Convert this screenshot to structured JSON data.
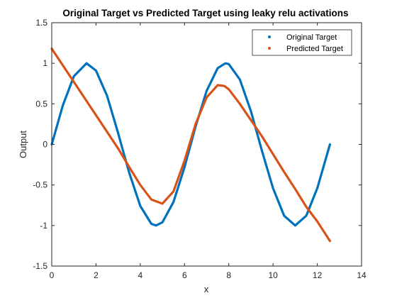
{
  "chart_data": {
    "type": "line",
    "title": "Original Target vs Predicted Target using leaky relu activations",
    "xlabel": "x",
    "ylabel": "Output",
    "xlim": [
      0,
      14
    ],
    "ylim": [
      -1.5,
      1.5
    ],
    "xticks": [
      0,
      2,
      4,
      6,
      8,
      10,
      12,
      14
    ],
    "yticks": [
      -1.5,
      -1,
      -0.5,
      0,
      0.5,
      1,
      1.5
    ],
    "xtick_labels": [
      "0",
      "2",
      "4",
      "6",
      "8",
      "10",
      "12",
      "14"
    ],
    "ytick_labels": [
      "-1.5",
      "-1",
      "-0.5",
      "0",
      "0.5",
      "1",
      "1.5"
    ],
    "grid": false,
    "legend_position": "top-right",
    "series": [
      {
        "name": "Original Target",
        "color": "#0072BD",
        "x": [
          0,
          0.5,
          1.0,
          1.57,
          2.0,
          2.5,
          3.0,
          3.14,
          3.5,
          4.0,
          4.5,
          4.71,
          5.0,
          5.5,
          6.0,
          6.28,
          6.5,
          7.0,
          7.5,
          7.85,
          8.0,
          8.5,
          9.0,
          9.42,
          9.5,
          10.0,
          10.5,
          11.0,
          11.5,
          12.0,
          12.57
        ],
        "y": [
          0,
          0.48,
          0.84,
          1.0,
          0.91,
          0.6,
          0.14,
          0,
          -0.35,
          -0.76,
          -0.98,
          -1.0,
          -0.96,
          -0.71,
          -0.28,
          0,
          0.22,
          0.66,
          0.94,
          1.0,
          0.99,
          0.8,
          0.41,
          0,
          -0.08,
          -0.54,
          -0.88,
          -1.0,
          -0.88,
          -0.54,
          0
        ]
      },
      {
        "name": "Predicted Target",
        "color": "#D95319",
        "x": [
          0,
          1.0,
          2.0,
          3.0,
          3.5,
          4.0,
          4.5,
          5.0,
          5.5,
          6.0,
          6.5,
          7.0,
          7.5,
          7.8,
          8.0,
          8.5,
          9.0,
          9.5,
          10.0,
          10.5,
          11.0,
          11.5,
          12.0,
          12.57
        ],
        "y": [
          1.18,
          0.77,
          0.36,
          -0.05,
          -0.28,
          -0.5,
          -0.68,
          -0.73,
          -0.58,
          -0.2,
          0.25,
          0.58,
          0.73,
          0.72,
          0.68,
          0.5,
          0.3,
          0.1,
          -0.12,
          -0.34,
          -0.55,
          -0.77,
          -0.95,
          -1.19
        ]
      }
    ]
  }
}
